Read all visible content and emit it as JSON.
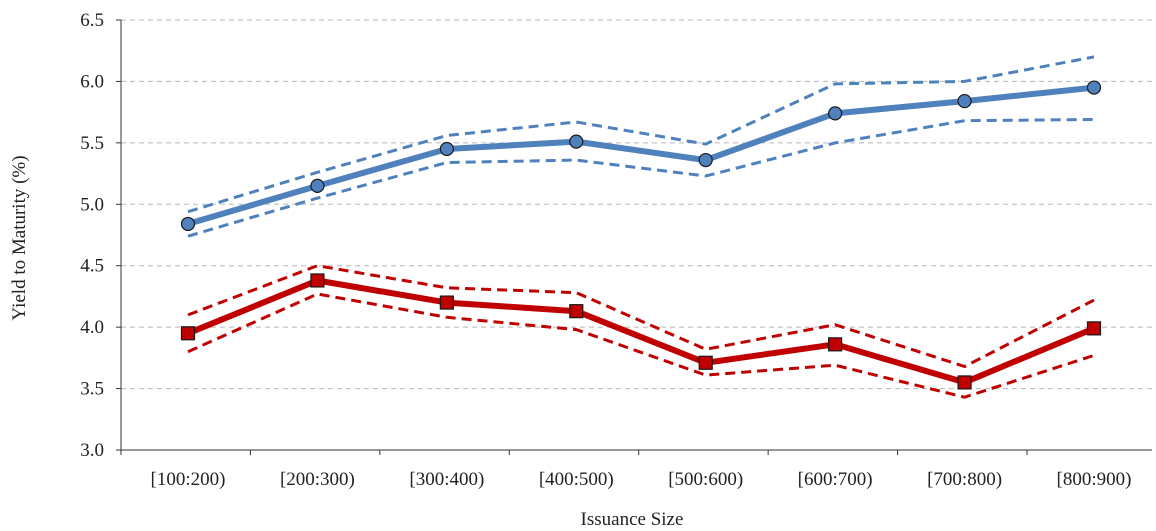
{
  "chart_data": {
    "type": "line",
    "title": "",
    "xlabel": "Issuance Size",
    "ylabel": "Yield to Maturity (%)",
    "categories": [
      "[100:200)",
      "[200:300)",
      "[300:400)",
      "[400:500)",
      "[500:600)",
      "[600:700)",
      "[700:800)",
      "[800:900)"
    ],
    "ylim": [
      3.0,
      6.5
    ],
    "yticks": [
      "3.0",
      "3.5",
      "4.0",
      "4.5",
      "5.0",
      "5.5",
      "6.0",
      "6.5"
    ],
    "grid": "horizontal dashed",
    "legend": "none",
    "series": [
      {
        "values": [
          4.84,
          5.15,
          5.45,
          5.51,
          5.36,
          5.74,
          5.84,
          5.95
        ],
        "upper": [
          4.94,
          5.26,
          5.56,
          5.67,
          5.49,
          5.98,
          6.0,
          6.2
        ],
        "lower": [
          4.74,
          5.05,
          5.34,
          5.36,
          5.23,
          5.5,
          5.68,
          5.69
        ],
        "color": "#4f81bd",
        "marker": "circle"
      },
      {
        "values": [
          3.95,
          4.38,
          4.2,
          4.13,
          3.71,
          3.86,
          3.55,
          3.99
        ],
        "upper": [
          4.1,
          4.5,
          4.32,
          4.28,
          3.82,
          4.02,
          3.68,
          4.22
        ],
        "lower": [
          3.8,
          4.27,
          4.08,
          3.98,
          3.61,
          3.69,
          3.43,
          3.77
        ],
        "color": "#c00000",
        "marker": "square"
      }
    ]
  }
}
